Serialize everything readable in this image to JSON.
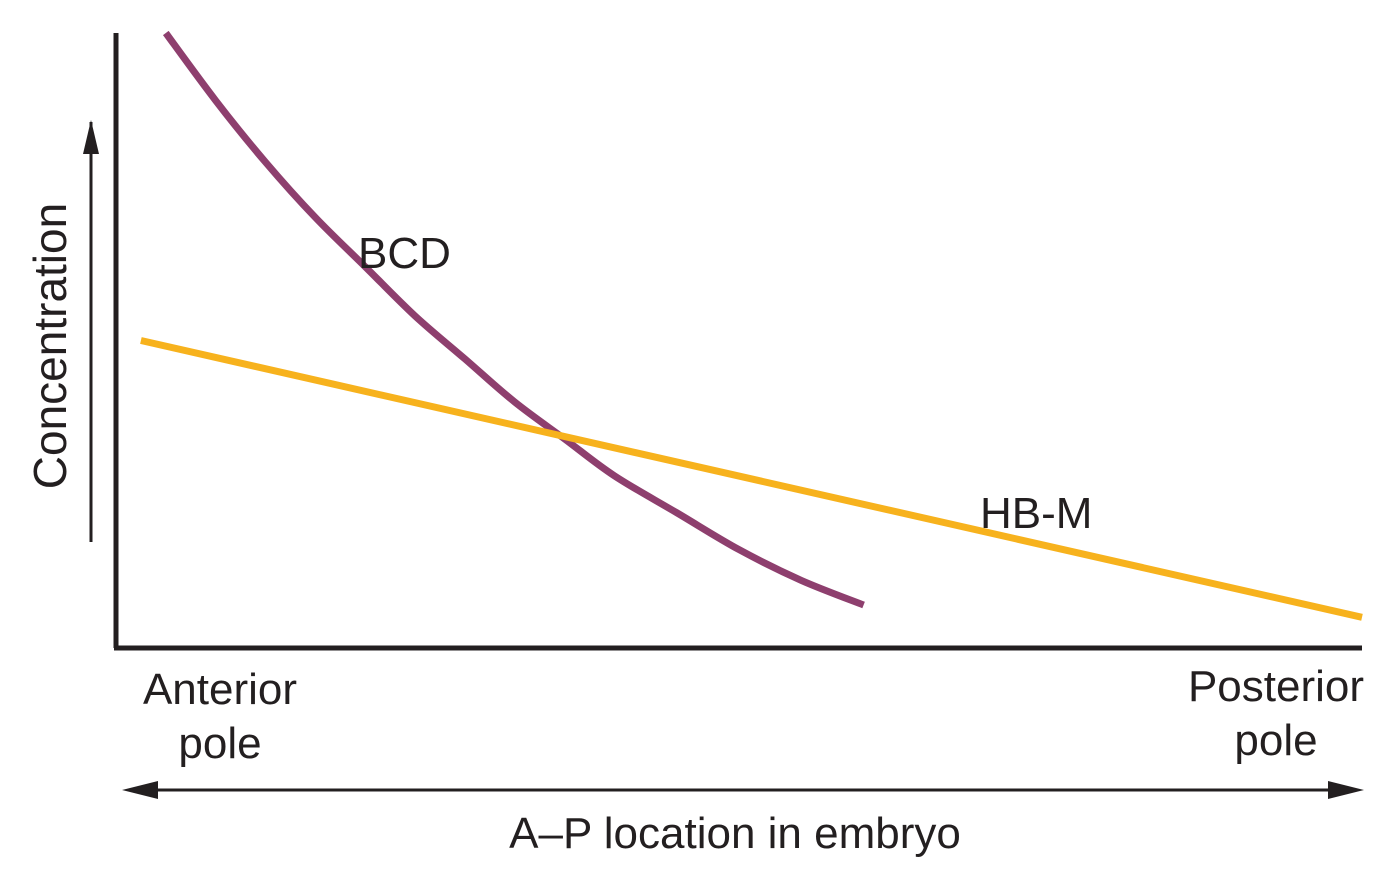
{
  "chart_data": {
    "type": "line",
    "ylabel": "Concentration",
    "xlabel": "A–P location in embryo",
    "x_tick_labels": {
      "left": [
        "Anterior",
        "pole"
      ],
      "right": [
        "Posterior",
        "pole"
      ]
    },
    "x_axis_arrow": "double-headed",
    "y_axis_arrow": "up",
    "grid": false,
    "legend": "none",
    "xlim": [
      0,
      1
    ],
    "ylim": [
      0,
      1
    ],
    "series": [
      {
        "name": "BCD",
        "color": "#8e3f6e",
        "x": [
          0.04,
          0.08,
          0.12,
          0.16,
          0.2,
          0.24,
          0.28,
          0.32,
          0.36,
          0.4,
          0.45,
          0.5,
          0.55,
          0.6
        ],
        "y": [
          1.0,
          0.89,
          0.79,
          0.7,
          0.62,
          0.54,
          0.47,
          0.4,
          0.34,
          0.28,
          0.22,
          0.16,
          0.11,
          0.07
        ]
      },
      {
        "name": "HB-M",
        "color": "#f7b21d",
        "x": [
          0.02,
          1.0
        ],
        "y": [
          0.5,
          0.05
        ]
      }
    ]
  }
}
